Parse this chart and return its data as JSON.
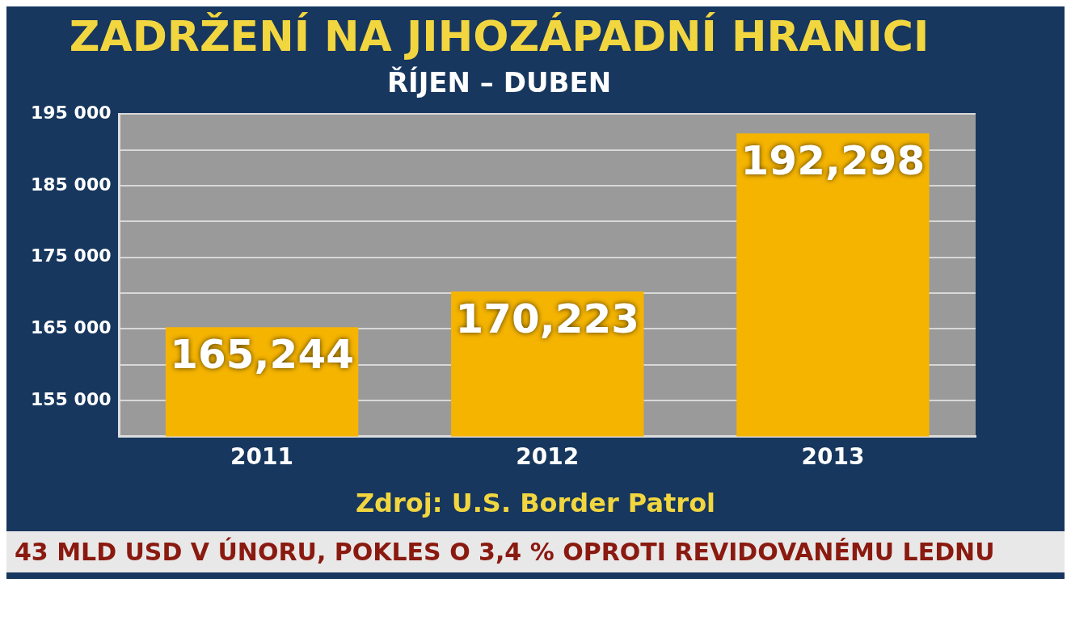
{
  "chart_data": {
    "type": "bar",
    "title": "ZADRŽENÍ NA JIHOZÁPADNÍ HRANICI",
    "subtitle": "ŘÍJEN – DUBEN",
    "categories": [
      "2011",
      "2012",
      "2013"
    ],
    "values": [
      165244,
      170223,
      192298
    ],
    "color": "#f5b400",
    "ylim": [
      150000,
      195000
    ],
    "yticks": [
      {
        "value": 155000,
        "label": "155 000"
      },
      {
        "value": 160000,
        "label": null
      },
      {
        "value": 165000,
        "label": "165 000"
      },
      {
        "value": 170000,
        "label": null
      },
      {
        "value": 175000,
        "label": "175 000"
      },
      {
        "value": 180000,
        "label": null
      },
      {
        "value": 185000,
        "label": "185 000"
      },
      {
        "value": 190000,
        "label": null
      },
      {
        "value": 195000,
        "label": "195 000"
      }
    ],
    "value_labels": [
      "165,244",
      "170,223",
      "192,298"
    ],
    "grid": "y",
    "legend": false,
    "annotations": [
      "Zdroj: U.S. Border Patrol",
      "43 MLD USD V ÚNORU, POKLES O 3,4 % OPROTI REVIDOVANÉMU LEDNU"
    ]
  }
}
